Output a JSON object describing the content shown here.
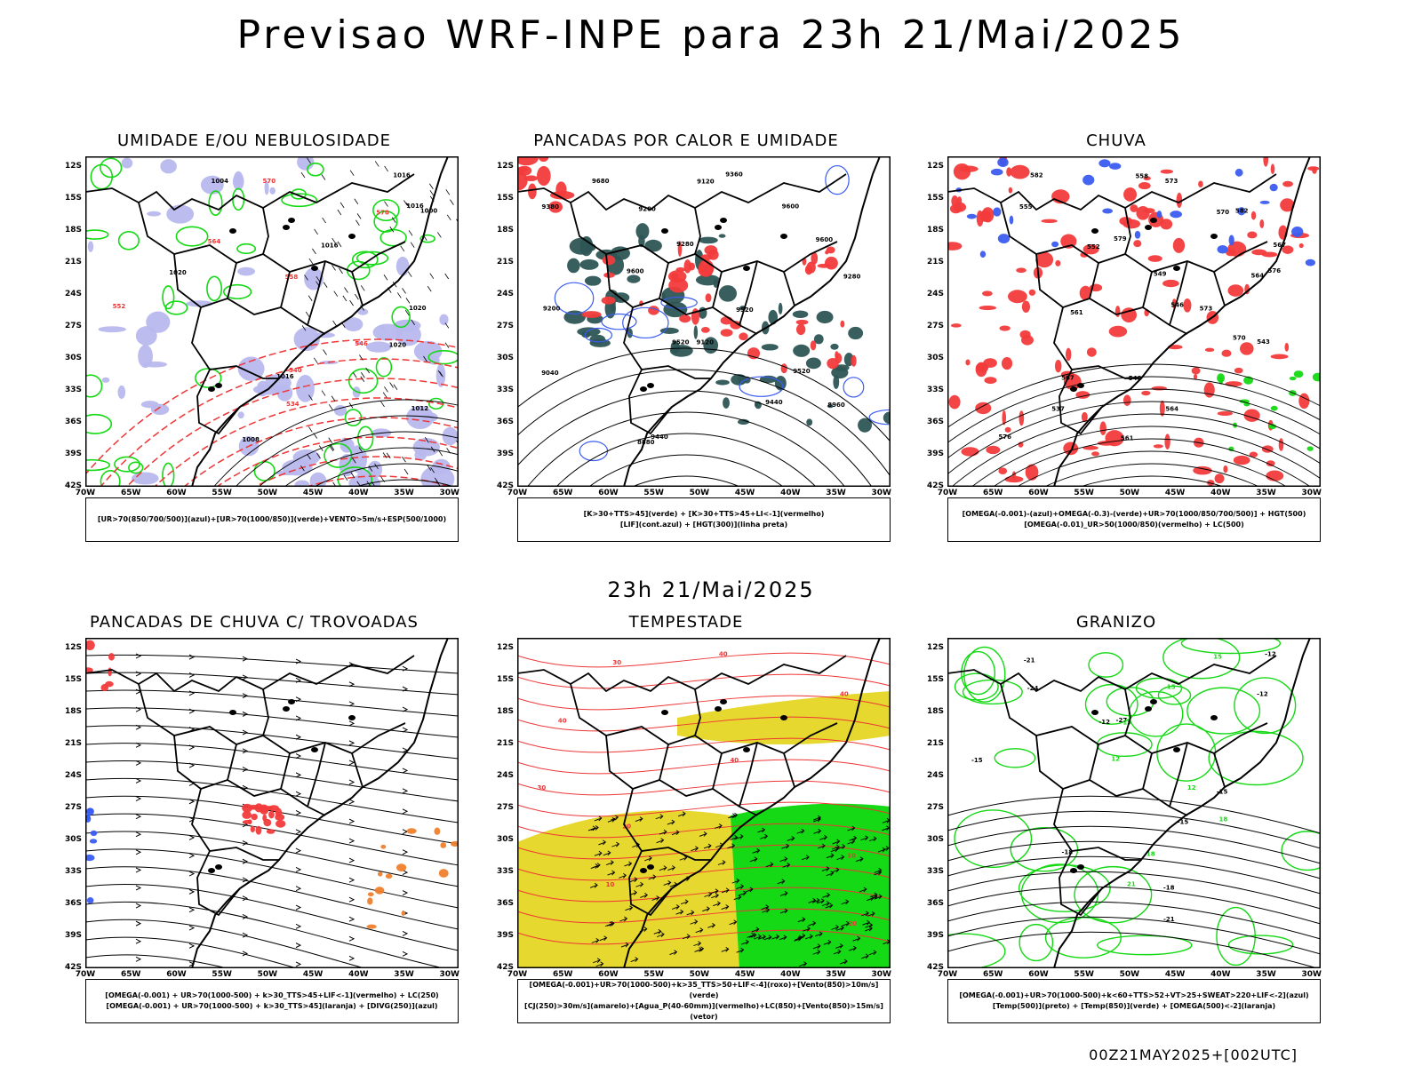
{
  "title": "Previsao WRF-INPE  para 23h 21/Mai/2025",
  "mid_time": "23h 21/Mai/2025",
  "footer": "00Z21MAY2025+[002UTC]",
  "lat_labels": [
    "12S",
    "15S",
    "18S",
    "21S",
    "24S",
    "27S",
    "30S",
    "33S",
    "36S",
    "39S",
    "42S"
  ],
  "lon_labels": [
    "70W",
    "65W",
    "60W",
    "55W",
    "50W",
    "45W",
    "40W",
    "35W",
    "30W"
  ],
  "panels": [
    {
      "title": "UMIDADE E/OU NEBULOSIDADE",
      "legend": [
        "[UR>70(850/700/500)](azul)+[UR>70(1000/850)](verde)+VENTO>5m/s+ESP(500/1000)"
      ],
      "contour_labels": [
        "1016",
        "1016",
        "1016",
        "1020",
        "1020",
        "1020",
        "1016",
        "1012",
        "1008",
        "1004",
        "1000",
        "570",
        "570",
        "564",
        "558",
        "552",
        "546",
        "540",
        "534"
      ]
    },
    {
      "title": "PANCADAS POR CALOR E UMIDADE",
      "legend": [
        "[K>30+TTS>45](verde) + [K>30+TTS>45+LI<-1](vermelho)",
        "[LIF](cont.azul) + [HGT(300)](linha preta)"
      ],
      "contour_labels": [
        "9680",
        "9600",
        "9600",
        "9600",
        "9520",
        "9520",
        "9520",
        "9440",
        "9440",
        "9360",
        "9380",
        "9280",
        "9280",
        "9200",
        "9120",
        "9040",
        "8960",
        "8880",
        "9120",
        "9200"
      ]
    },
    {
      "title": "CHUVA",
      "legend": [
        "[OMEGA(-0.001)-(azul)+OMEGA(-0.3)-(verde)+UR>70(1000/850/700/500)] + HGT(500)",
        "[OMEGA(-0.01)_UR>50(1000/850)(vermelho) + LC(500)"
      ],
      "contour_labels": [
        "582",
        "582",
        "579",
        "576",
        "573",
        "570",
        "567",
        "564",
        "561",
        "558",
        "555",
        "552",
        "549",
        "546",
        "543",
        "540",
        "537",
        "576",
        "573",
        "570",
        "567",
        "564",
        "561"
      ]
    },
    {
      "title": "PANCADAS DE CHUVA C/ TROVOADAS",
      "legend": [
        "[OMEGA(-0.001) + UR>70(1000-500) + k>30_TTS>45+LIF<-1](vermelho) + LC(250)",
        "[OMEGA(-0.001) + UR>70(1000-500) + k>30_TTS>45](laranja) + [DIVG(250)](azul)"
      ],
      "contour_labels": []
    },
    {
      "title": "TEMPESTADE",
      "legend": [
        "[OMEGA(-0.001)+UR>70(1000-500)+k>35_TTS>50+LIF<-4](roxo)+[Vento(850)>10m/s](verde)",
        "[CJ(250)>30m/s](amarelo)+[Agua_P(40-60mm)](vermelho)+LC(850)+[Vento(850)>15m/s](vetor)"
      ],
      "contour_labels": [
        "40",
        "40",
        "40",
        "40",
        "30",
        "20",
        "10",
        "10",
        "20",
        "30"
      ]
    },
    {
      "title": "GRANIZO",
      "legend": [
        "[OMEGA(-0.001)+UR>70(1000-500)+k<60+TTS>52+VT>25+SWEAT>220+LIF<-2](azul)",
        "[Temp(500)](preto) + [Temp(850)](verde) + [OMEGA(500)<-2](laranja)"
      ],
      "contour_labels": [
        "-12",
        "-12",
        "-12",
        "-15",
        "-15",
        "-15",
        "-18",
        "-18",
        "-21",
        "-21",
        "-24",
        "-27",
        "15",
        "15",
        "15",
        "12",
        "12",
        "18",
        "18",
        "21"
      ]
    }
  ],
  "colors": {
    "red": "#f23b3b",
    "green": "#14d914",
    "blue": "#3a5cf0",
    "lavender": "#b8b8ee",
    "teal": "#2e5555",
    "yellow": "#e6d82e",
    "orange": "#ef7f2c",
    "line_red": "#ef3535"
  }
}
